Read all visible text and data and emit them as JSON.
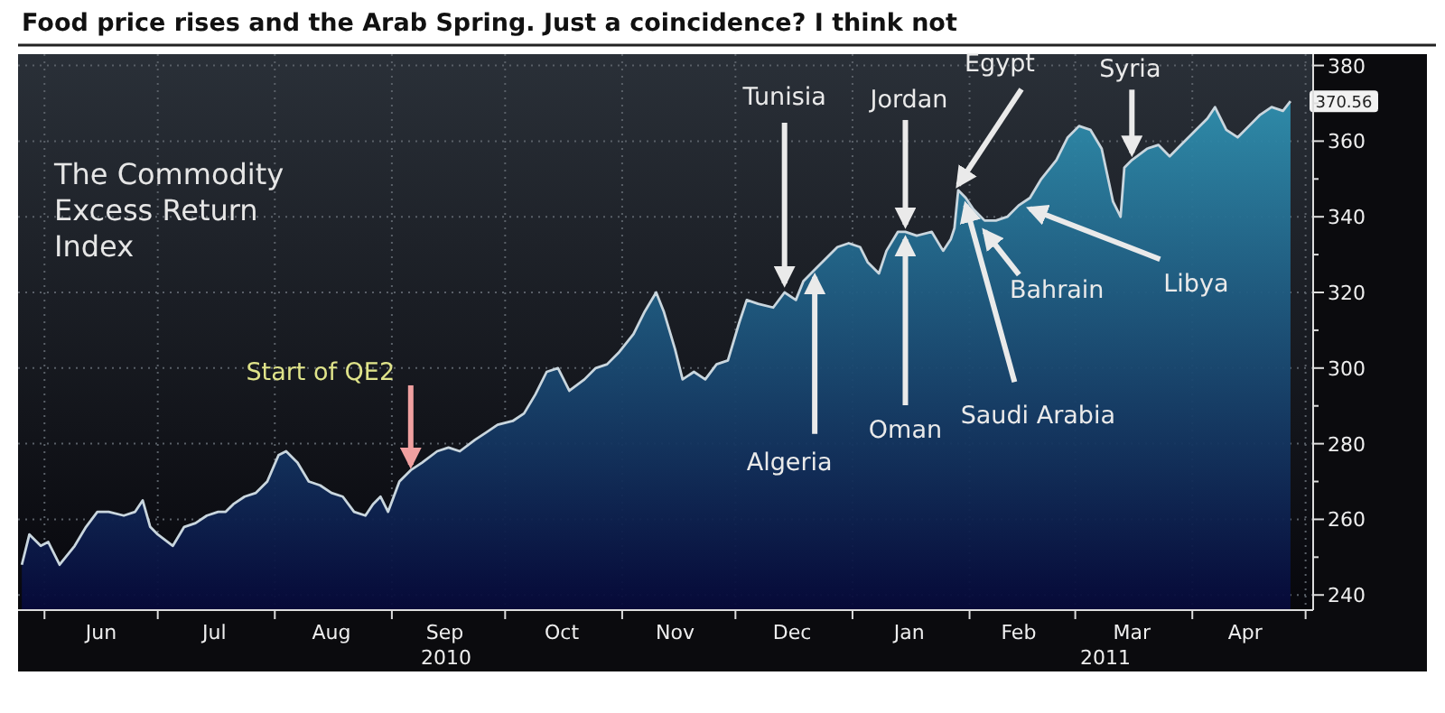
{
  "chart_data": {
    "type": "area",
    "title": "Food price rises and the Arab Spring. Just a coincidence? I think not",
    "x": [
      "2010-05-26",
      "2010-05-28",
      "2010-05-31",
      "2010-06-02",
      "2010-06-05",
      "2010-06-09",
      "2010-06-12",
      "2010-06-15",
      "2010-06-18",
      "2010-06-22",
      "2010-06-25",
      "2010-06-27",
      "2010-06-29",
      "2010-07-01",
      "2010-07-05",
      "2010-07-08",
      "2010-07-11",
      "2010-07-14",
      "2010-07-17",
      "2010-07-19",
      "2010-07-21",
      "2010-07-24",
      "2010-07-27",
      "2010-07-30",
      "2010-08-02",
      "2010-08-04",
      "2010-08-07",
      "2010-08-10",
      "2010-08-13",
      "2010-08-16",
      "2010-08-19",
      "2010-08-22",
      "2010-08-25",
      "2010-08-27",
      "2010-08-29",
      "2010-08-31",
      "2010-09-03",
      "2010-09-06",
      "2010-09-09",
      "2010-09-13",
      "2010-09-16",
      "2010-09-19",
      "2010-09-23",
      "2010-09-26",
      "2010-09-29",
      "2010-10-03",
      "2010-10-06",
      "2010-10-09",
      "2010-10-12",
      "2010-10-15",
      "2010-10-18",
      "2010-10-22",
      "2010-10-25",
      "2010-10-28",
      "2010-10-31",
      "2010-11-04",
      "2010-11-07",
      "2010-11-10",
      "2010-11-12",
      "2010-11-15",
      "2010-11-17",
      "2010-11-20",
      "2010-11-23",
      "2010-11-26",
      "2010-11-29",
      "2010-12-02",
      "2010-12-04",
      "2010-12-07",
      "2010-12-11",
      "2010-12-14",
      "2010-12-17",
      "2010-12-19",
      "2010-12-22",
      "2010-12-25",
      "2010-12-28",
      "2010-12-31",
      "2011-01-03",
      "2011-01-05",
      "2011-01-08",
      "2011-01-10",
      "2011-01-13",
      "2011-01-15",
      "2011-01-18",
      "2011-01-22",
      "2011-01-25",
      "2011-01-27",
      "2011-01-28",
      "2011-01-29",
      "2011-01-31",
      "2011-02-02",
      "2011-02-05",
      "2011-02-08",
      "2011-02-11",
      "2011-02-14",
      "2011-02-17",
      "2011-02-20",
      "2011-02-24",
      "2011-02-27",
      "2011-03-02",
      "2011-03-05",
      "2011-03-08",
      "2011-03-11",
      "2011-03-13",
      "2011-03-14",
      "2011-03-16",
      "2011-03-20",
      "2011-03-23",
      "2011-03-26",
      "2011-03-29",
      "2011-04-02",
      "2011-04-05",
      "2011-04-07",
      "2011-04-10",
      "2011-04-13",
      "2011-04-16",
      "2011-04-19",
      "2011-04-22",
      "2011-04-25",
      "2011-04-27"
    ],
    "series": [
      {
        "color": "#2f8fae",
        "values": [
          248,
          256,
          253,
          254,
          248,
          253,
          258,
          262,
          262,
          261,
          262,
          265,
          258,
          256,
          253,
          258,
          259,
          261,
          262,
          262,
          264,
          266,
          267,
          270,
          277,
          278,
          275,
          270,
          269,
          267,
          266,
          262,
          261,
          264,
          266,
          262,
          270,
          273,
          275,
          278,
          279,
          278,
          281,
          283,
          285,
          286,
          288,
          293,
          299,
          300,
          294,
          297,
          300,
          301,
          304,
          309,
          315,
          320,
          315,
          305,
          297,
          299,
          297,
          301,
          302,
          312,
          318,
          317,
          316,
          320,
          318,
          323,
          326,
          329,
          332,
          333,
          332,
          328,
          325,
          331,
          336,
          336,
          335,
          336,
          331,
          334,
          337,
          347,
          345,
          342,
          339,
          339,
          340,
          343,
          345,
          350,
          355,
          361,
          364,
          363,
          358,
          344,
          340,
          353,
          355,
          358,
          359,
          356,
          359,
          363,
          366,
          369,
          363,
          361,
          364,
          367,
          369,
          368,
          370.56
        ],
        "value_labels": [
          null,
          null,
          null,
          null,
          null,
          null,
          null,
          null,
          null,
          null,
          null,
          null,
          null,
          null,
          null,
          null,
          null,
          null,
          null,
          null,
          null,
          null,
          null,
          null,
          null,
          null,
          null,
          null,
          null,
          null,
          null,
          null,
          null,
          null,
          null,
          null,
          null,
          null,
          null,
          null,
          null,
          null,
          null,
          null,
          null,
          null,
          null,
          null,
          null,
          null,
          null,
          null,
          null,
          null,
          null,
          null,
          null,
          null,
          null,
          null,
          null,
          null,
          null,
          null,
          null,
          null,
          null,
          null,
          null,
          null,
          null,
          null,
          null,
          null,
          null,
          null,
          null,
          null,
          null,
          null,
          null,
          null,
          null,
          null,
          null,
          null,
          null,
          null,
          null,
          null,
          null,
          null,
          null,
          null,
          null,
          null,
          null,
          null,
          null,
          null,
          null,
          null,
          null,
          null,
          null,
          null,
          null,
          null,
          null,
          null,
          null,
          null,
          null,
          null,
          null,
          null,
          null,
          null,
          "370.56"
        ]
      }
    ],
    "xlim": [
      "2010-05-25",
      "2011-05-03"
    ],
    "xticks": [
      {
        "value": "2010-06-01",
        "label": null
      },
      {
        "value": "2010-06-16",
        "label": "Jun"
      },
      {
        "value": "2010-07-01",
        "label": null
      },
      {
        "value": "2010-07-16",
        "label": "Jul"
      },
      {
        "value": "2010-08-01",
        "label": null
      },
      {
        "value": "2010-08-16",
        "label": "Aug"
      },
      {
        "value": "2010-09-01",
        "label": null
      },
      {
        "value": "2010-09-15",
        "label": "Sep"
      },
      {
        "value": "2010-10-01",
        "label": null
      },
      {
        "value": "2010-10-16",
        "label": "Oct"
      },
      {
        "value": "2010-11-01",
        "label": null
      },
      {
        "value": "2010-11-15",
        "label": "Nov"
      },
      {
        "value": "2010-12-01",
        "label": null
      },
      {
        "value": "2010-12-16",
        "label": "Dec"
      },
      {
        "value": "2011-01-01",
        "label": null
      },
      {
        "value": "2011-01-16",
        "label": "Jan"
      },
      {
        "value": "2011-02-01",
        "label": null
      },
      {
        "value": "2011-02-14",
        "label": "Feb"
      },
      {
        "value": "2011-03-01",
        "label": null
      },
      {
        "value": "2011-03-16",
        "label": "Mar"
      },
      {
        "value": "2011-04-01",
        "label": null
      },
      {
        "value": "2011-04-15",
        "label": "Apr"
      },
      {
        "value": "2011-05-01",
        "label": null
      }
    ],
    "ylim": [
      236,
      383
    ],
    "yticks": [
      240,
      {
        "value": 250,
        "label": null
      },
      260,
      {
        "value": 270,
        "label": null
      },
      280,
      {
        "value": 290,
        "label": null
      },
      300,
      {
        "value": 310,
        "label": null
      },
      320,
      {
        "value": 330,
        "label": null
      },
      340,
      {
        "value": 350,
        "label": null
      },
      360,
      {
        "value": 370,
        "label": null
      },
      380
    ],
    "grid": true,
    "annotations": [
      "The Commodity Excess Return Index",
      {
        "text": "Start of QE2",
        "x": "2010-09-06",
        "y": 273
      },
      {
        "text": "Tunisia",
        "x": "2010-12-14",
        "y": 320
      },
      {
        "text": "Jordan",
        "x": "2011-01-15",
        "y": 336
      },
      {
        "text": "Egypt",
        "x": "2011-01-29",
        "y": 347
      },
      {
        "text": "Syria",
        "x": "2011-03-16",
        "y": 355
      },
      {
        "text": "Algeria",
        "x": "2010-12-22",
        "y": 326
      },
      {
        "text": "Oman",
        "x": "2011-01-15",
        "y": 336
      },
      {
        "text": "Saudi Arabia",
        "x": "2011-01-31",
        "y": 345
      },
      {
        "text": "Bahrain",
        "x": "2011-02-05",
        "y": 339
      },
      {
        "text": "Libya",
        "x": "2011-02-17",
        "y": 345
      },
      "2010",
      "2011"
    ]
  }
}
